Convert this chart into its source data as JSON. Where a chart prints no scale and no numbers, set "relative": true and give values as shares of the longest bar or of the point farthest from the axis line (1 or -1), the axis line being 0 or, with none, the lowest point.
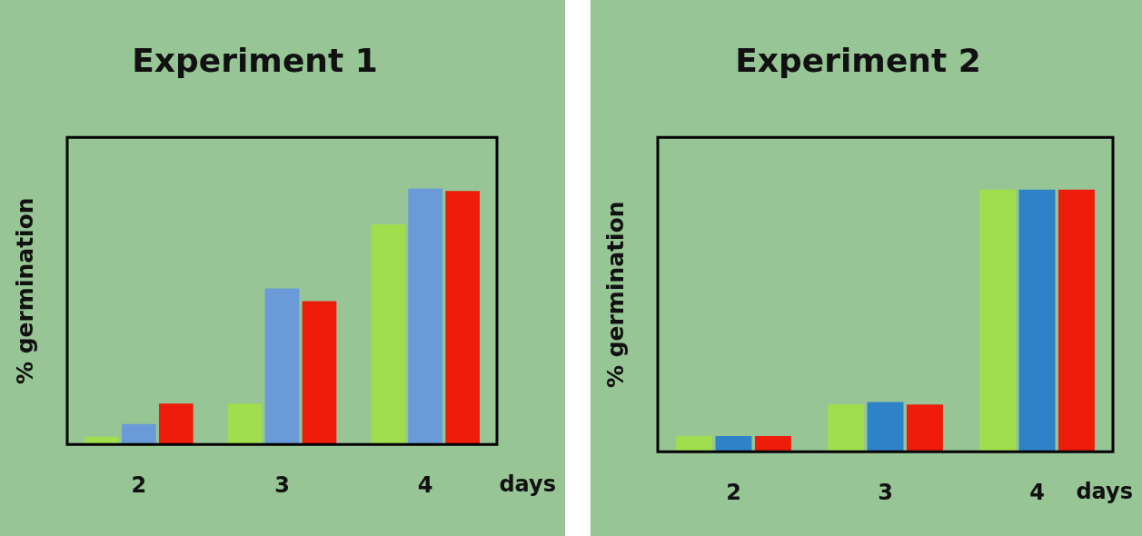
{
  "chart_data": [
    {
      "type": "bar",
      "title": "Experiment 1",
      "xlabel": "days",
      "ylabel": "% germination",
      "categories": [
        "2",
        "3",
        "4"
      ],
      "relative": true,
      "tick_labels": "x",
      "grid": false,
      "legend": false,
      "series": [
        {
          "color": "#a0de4e",
          "values": [
            0.03,
            0.16,
            0.86
          ]
        },
        {
          "color": "#6a9ad8",
          "values": [
            0.08,
            0.61,
            1
          ]
        },
        {
          "color": "#ee1c0a",
          "values": [
            0.16,
            0.56,
            0.99
          ]
        }
      ]
    },
    {
      "type": "bar",
      "title": "Experiment 2",
      "xlabel": "days",
      "ylabel": "% germination",
      "categories": [
        "2",
        "3",
        "4"
      ],
      "relative": true,
      "tick_labels": "x",
      "grid": false,
      "legend": false,
      "series": [
        {
          "color": "#a0de4e",
          "values": [
            0.06,
            0.18,
            1
          ]
        },
        {
          "color": "#2e83c8",
          "values": [
            0.06,
            0.19,
            1
          ]
        },
        {
          "color": "#ee1c0a",
          "values": [
            0.06,
            0.18,
            1
          ]
        }
      ]
    }
  ]
}
